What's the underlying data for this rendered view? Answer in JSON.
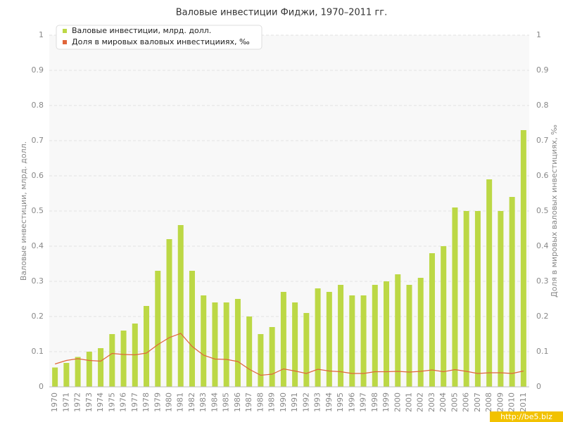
{
  "chart_data": {
    "type": "bar_line",
    "title": "Валовые инвестиции Фиджи, 1970–2011 гг.",
    "y_label": "Валовые инвестиции, млрд. долл.",
    "y2_label": "Доля в мировых валовых инвестициях, ‰",
    "watermark": "http://be5.biz",
    "categories": [
      "1970",
      "1971",
      "1972",
      "1973",
      "1974",
      "1975",
      "1976",
      "1977",
      "1978",
      "1979",
      "1980",
      "1981",
      "1982",
      "1983",
      "1984",
      "1985",
      "1986",
      "1987",
      "1988",
      "1989",
      "1990",
      "1991",
      "1992",
      "1993",
      "1994",
      "1995",
      "1996",
      "1997",
      "1998",
      "1999",
      "2000",
      "2001",
      "2002",
      "2003",
      "2004",
      "2005",
      "2006",
      "2007",
      "2008",
      "2009",
      "2010",
      "2011"
    ],
    "series": [
      {
        "name": "Валовые инвестиции, млрд. долл.",
        "color": "#bcd845",
        "kind": "bar",
        "values": [
          0.055,
          0.068,
          0.085,
          0.1,
          0.11,
          0.15,
          0.16,
          0.18,
          0.23,
          0.33,
          0.42,
          0.46,
          0.33,
          0.26,
          0.24,
          0.24,
          0.25,
          0.2,
          0.15,
          0.17,
          0.27,
          0.24,
          0.21,
          0.28,
          0.27,
          0.29,
          0.26,
          0.26,
          0.29,
          0.3,
          0.32,
          0.29,
          0.31,
          0.38,
          0.4,
          0.51,
          0.5,
          0.5,
          0.59,
          0.5,
          0.54,
          0.73
        ]
      },
      {
        "name": "Доля в мировых валовых инвестицииях, ‰",
        "color": "#e0653a",
        "kind": "line",
        "axis": "y2",
        "values": [
          0.065,
          0.075,
          0.08,
          0.075,
          0.073,
          0.095,
          0.092,
          0.091,
          0.096,
          0.12,
          0.14,
          0.152,
          0.115,
          0.09,
          0.079,
          0.078,
          0.072,
          0.05,
          0.033,
          0.036,
          0.051,
          0.045,
          0.038,
          0.05,
          0.045,
          0.043,
          0.038,
          0.038,
          0.043,
          0.043,
          0.044,
          0.042,
          0.044,
          0.048,
          0.043,
          0.049,
          0.044,
          0.038,
          0.04,
          0.04,
          0.038,
          0.045
        ]
      }
    ],
    "ylim": [
      0,
      1
    ],
    "yticks": [
      0,
      0.1,
      0.2,
      0.3,
      0.4,
      0.5,
      0.6,
      0.7,
      0.8,
      0.9,
      1
    ],
    "y2lim": [
      0,
      1
    ],
    "y2ticks": [
      0,
      0.1,
      0.2,
      0.3,
      0.4,
      0.5,
      0.6,
      0.7,
      0.8,
      0.9,
      1
    ],
    "grid": true
  }
}
